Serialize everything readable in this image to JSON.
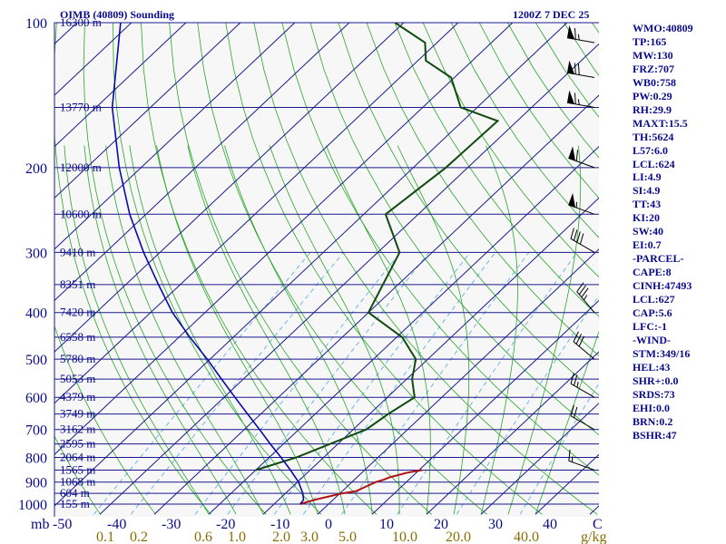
{
  "header": {
    "station_title": "OIMB (40809) Sounding",
    "time_label": "1200Z  7 DEC 25"
  },
  "indices": [
    "WMO:40809",
    "TP:165",
    "MW:130",
    "FRZ:707",
    "WB0:758",
    "PW:0.29",
    "RH:29.9",
    "MAXT:15.5",
    "TH:5624",
    "L57:6.0",
    "LCL:624",
    "LI:4.9",
    "SI:4.9",
    "TT:43",
    "KI:20",
    "SW:40",
    "EI:0.7",
    "-PARCEL-",
    "CAPE:8",
    "CINH:47493",
    "LCL:627",
    "CAP:5.6",
    "LFC:-1",
    "-WIND-",
    "STM:349/16",
    "HEL:43",
    "SHR+:0.0",
    "SRDS:73",
    "EHI:0.0",
    "BRN:0.2",
    "BSHR:47"
  ],
  "colors": {
    "temperature": "#b01010",
    "dewpoint": "#0f4a0f",
    "parcel": "#0a0aa8",
    "dry_adiabat": "#2aa52a",
    "mixing_ratio": "#6fb7e0",
    "isobar": "#1a1a8c"
  },
  "chart_data": {
    "type": "line",
    "title": "OIMB (40809) Sounding",
    "xlabel": "",
    "ylabel": "",
    "pressure_axis": {
      "scale": "log",
      "range": [
        1000,
        100
      ],
      "unit_label": "mb",
      "ticks": [
        "100",
        "200",
        "300",
        "400",
        "500",
        "600",
        "700",
        "800",
        "900",
        "1000"
      ]
    },
    "temperature_axis": {
      "range": [
        -50,
        50
      ],
      "unit_label": "C",
      "ticks": [
        "-50",
        "-40",
        "-30",
        "-20",
        "-10",
        "0",
        "10",
        "20",
        "30",
        "40"
      ]
    },
    "mixing_ratio_labels": [
      "0.1",
      "0.2",
      "0.6",
      "1.0",
      "2.0",
      "3.0",
      "5.0",
      "10.0",
      "20.0",
      "40.0"
    ],
    "mixing_ratio_unit": "g/kg",
    "height_levels": [
      {
        "p": 100,
        "label": "16300 m"
      },
      {
        "p": 150,
        "label": "13770 m"
      },
      {
        "p": 200,
        "label": "12000 m"
      },
      {
        "p": 250,
        "label": "10600 m"
      },
      {
        "p": 300,
        "label": "9410 m"
      },
      {
        "p": 350,
        "label": "8351 m"
      },
      {
        "p": 400,
        "label": "7420 m"
      },
      {
        "p": 450,
        "label": "6558 m"
      },
      {
        "p": 500,
        "label": "5780 m"
      },
      {
        "p": 550,
        "label": "5053 m"
      },
      {
        "p": 600,
        "label": "4379 m"
      },
      {
        "p": 650,
        "label": "3749 m"
      },
      {
        "p": 700,
        "label": "3162 m"
      },
      {
        "p": 750,
        "label": "2595 m"
      },
      {
        "p": 800,
        "label": "2064 m"
      },
      {
        "p": 850,
        "label": "1565 m"
      },
      {
        "p": 900,
        "label": "1068 m"
      },
      {
        "p": 950,
        "label": "604 m"
      },
      {
        "p": 1000,
        "label": "155 m"
      }
    ],
    "series": [
      {
        "role": "temperature",
        "points": [
          [
            850,
            10.6
          ],
          [
            860,
            8.4
          ],
          [
            880,
            6.0
          ],
          [
            890,
            5.4
          ],
          [
            900,
            4.4
          ],
          [
            925,
            3.2
          ],
          [
            940,
            2.6
          ],
          [
            950,
            0.4
          ],
          [
            970,
            -2.2
          ],
          [
            980,
            -3.4
          ],
          [
            1000,
            -5.2
          ]
        ]
      },
      {
        "role": "dewpoint",
        "points": [
          [
            850,
            -20.0
          ],
          [
            800,
            -15.0
          ],
          [
            700,
            -7.6
          ],
          [
            650,
            -6.6
          ],
          [
            600,
            -5.0
          ],
          [
            550,
            -9.0
          ],
          [
            500,
            -12.2
          ],
          [
            450,
            -19.0
          ],
          [
            400,
            -30.0
          ],
          [
            300,
            -36.0
          ],
          [
            250,
            -46.0
          ],
          [
            200,
            -44.0
          ],
          [
            160,
            -43.6
          ],
          [
            150,
            -53.0
          ],
          [
            130,
            -60.6
          ],
          [
            120,
            -68.5
          ],
          [
            110,
            -72.2
          ],
          [
            100,
            -81.6
          ]
        ]
      },
      {
        "role": "parcel",
        "points": [
          [
            1000,
            -5.2
          ],
          [
            980,
            -5.4
          ],
          [
            950,
            -6.8
          ],
          [
            900,
            -9.8
          ],
          [
            850,
            -13.6
          ],
          [
            800,
            -17.8
          ],
          [
            750,
            -22.4
          ],
          [
            700,
            -27.2
          ],
          [
            650,
            -32.4
          ],
          [
            600,
            -38.0
          ],
          [
            550,
            -44.0
          ],
          [
            500,
            -50.5
          ],
          [
            450,
            -58.0
          ],
          [
            400,
            -66.0
          ],
          [
            350,
            -74.0
          ],
          [
            300,
            -83.0
          ],
          [
            250,
            -93.0
          ],
          [
            200,
            -104.0
          ],
          [
            150,
            -117.0
          ],
          [
            100,
            -132.0
          ]
        ]
      }
    ],
    "wind_barbs": [
      {
        "p": 850,
        "dir": 290,
        "kt": 15
      },
      {
        "p": 700,
        "dir": 300,
        "kt": 20
      },
      {
        "p": 600,
        "dir": 300,
        "kt": 25
      },
      {
        "p": 500,
        "dir": 310,
        "kt": 30
      },
      {
        "p": 400,
        "dir": 320,
        "kt": 35
      },
      {
        "p": 300,
        "dir": 300,
        "kt": 40
      },
      {
        "p": 250,
        "dir": 290,
        "kt": 55
      },
      {
        "p": 200,
        "dir": 290,
        "kt": 60
      },
      {
        "p": 150,
        "dir": 280,
        "kt": 65
      },
      {
        "p": 130,
        "dir": 280,
        "kt": 70
      },
      {
        "p": 110,
        "dir": 280,
        "kt": 65
      }
    ]
  }
}
